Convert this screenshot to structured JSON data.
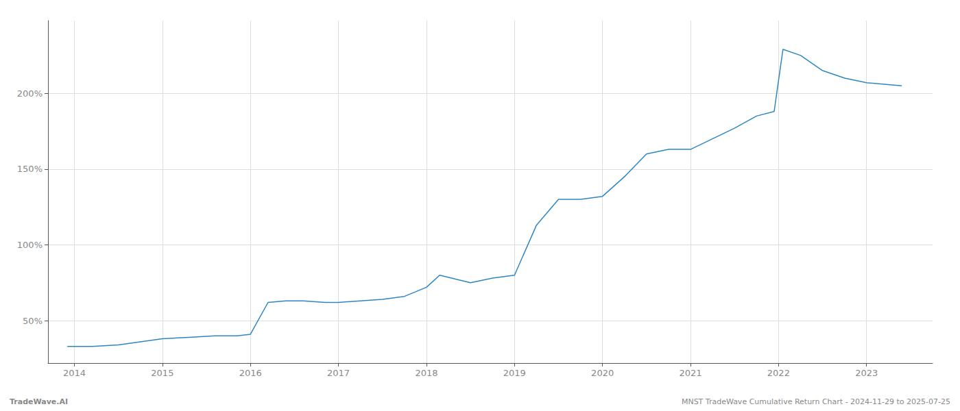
{
  "chart_data": {
    "type": "line",
    "x": [
      2013.92,
      2014.0,
      2014.2,
      2014.5,
      2014.75,
      2015.0,
      2015.3,
      2015.6,
      2015.85,
      2016.0,
      2016.2,
      2016.4,
      2016.6,
      2016.85,
      2017.0,
      2017.25,
      2017.5,
      2017.75,
      2018.0,
      2018.15,
      2018.5,
      2018.75,
      2019.0,
      2019.25,
      2019.5,
      2019.75,
      2020.0,
      2020.25,
      2020.5,
      2020.75,
      2021.0,
      2021.25,
      2021.5,
      2021.75,
      2021.95,
      2022.05,
      2022.25,
      2022.5,
      2022.75,
      2023.0,
      2023.4
    ],
    "values": [
      33,
      33,
      33,
      34,
      36,
      38,
      39,
      40,
      40,
      41,
      62,
      63,
      63,
      62,
      62,
      63,
      64,
      66,
      72,
      80,
      75,
      78,
      80,
      113,
      130,
      130,
      132,
      145,
      160,
      163,
      163,
      170,
      177,
      185,
      188,
      229,
      225,
      215,
      210,
      207,
      205
    ],
    "color": "#2e86c1",
    "xlim": [
      2013.7,
      2023.75
    ],
    "xticks": [
      2014,
      2015,
      2016,
      2017,
      2018,
      2019,
      2020,
      2021,
      2022,
      2023
    ],
    "ylim": [
      22,
      248
    ],
    "yticks": [
      {
        "value": 50,
        "label": "50%"
      },
      {
        "value": 100,
        "label": "100%"
      },
      {
        "value": 150,
        "label": "150%"
      },
      {
        "value": 200,
        "label": "200%"
      }
    ],
    "grid": true,
    "annotations": [
      "TradeWave.AI",
      "MNST TradeWave Cumulative Return Chart - 2024-11-29 to 2025-07-25"
    ]
  }
}
